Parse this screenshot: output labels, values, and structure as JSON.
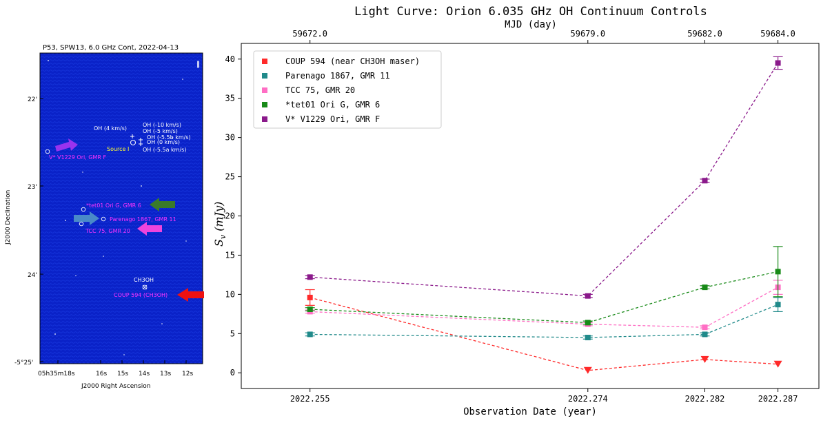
{
  "map": {
    "title": "P53, SPW13, 6.0 GHz Cont, 2022-04-13",
    "xlabel": "J2000 Right Ascension",
    "ylabel": "J2000 Declination",
    "ra_ticks": [
      "05h35m18s",
      "16s",
      "15s",
      "14s",
      "13s",
      "12s"
    ],
    "dec_ticks": [
      "22'",
      "23'",
      "24'",
      "-5°25'"
    ],
    "labels": {
      "oh4": "OH (4 km/s)",
      "oh_m10": "OH (-10 km/s)",
      "oh_m5": "OH (-5 km/s)",
      "oh_m55b": "OH (-5.5b km/s)",
      "oh_0": "OH (0 km/s)",
      "oh_m55a": "OH (-5.5a km/s)",
      "source_i": "Source I",
      "v1229": "V* V1229 Ori, GMR F",
      "tet01": "*tet01 Ori G, GMR 6",
      "parenago": "Parenago 1867, GMR 11",
      "tcc75": "TCC 75, GMR 20",
      "ch3oh": "CH3OH",
      "coup": "COUP 594 (CH3OH)"
    },
    "colors": {
      "background": "#0a22c8",
      "source_label": "#ff33ff",
      "maser_label": "#ffffff",
      "source_i": "#ffff33"
    }
  },
  "chart_data": {
    "type": "line",
    "title": "Light Curve: Orion 6.035 GHz OH Continuum Controls",
    "top_axis_label": "MJD (day)",
    "top_ticks": [
      "59672.0",
      "59679.0",
      "59682.0",
      "59684.0"
    ],
    "xlabel": "Observation Date (year)",
    "ylabel": "S_v (mJy)",
    "x": [
      2022.255,
      2022.274,
      2022.282,
      2022.287
    ],
    "x_tick_labels": [
      "2022.255",
      "2022.274",
      "2022.282",
      "2022.287"
    ],
    "ylim": [
      -2,
      42
    ],
    "yticks": [
      0,
      5,
      10,
      15,
      20,
      25,
      30,
      35,
      40
    ],
    "grid": false,
    "legend_position": "top-left",
    "series": [
      {
        "name": "COUP 594 (near CH3OH maser)",
        "color": "#ff2a2a",
        "values": [
          9.6,
          0.3,
          1.7,
          1.1
        ],
        "errors": [
          1.0,
          0,
          0,
          0
        ],
        "markers": [
          "square",
          "triangle-down",
          "triangle-down",
          "triangle-down"
        ]
      },
      {
        "name": "Parenago 1867, GMR 11",
        "color": "#208a8a",
        "values": [
          4.9,
          4.5,
          4.9,
          8.7
        ],
        "errors": [
          0.2,
          0.2,
          0.2,
          0.9
        ],
        "markers": [
          "square",
          "square",
          "square",
          "square"
        ]
      },
      {
        "name": "TCC 75, GMR 20",
        "color": "#ff6ec4",
        "values": [
          7.8,
          6.2,
          5.8,
          10.9
        ],
        "errors": [
          0.2,
          0.2,
          0.2,
          0.9
        ],
        "markers": [
          "square",
          "square",
          "square",
          "square"
        ]
      },
      {
        "name": "*tet01 Ori G, GMR 6",
        "color": "#188a18",
        "values": [
          8.1,
          6.4,
          10.9,
          12.9
        ],
        "errors": [
          0.2,
          0.2,
          0.2,
          3.2
        ],
        "markers": [
          "square",
          "square",
          "square",
          "square"
        ]
      },
      {
        "name": "V* V1229 Ori, GMR F",
        "color": "#8b1a8b",
        "values": [
          12.2,
          9.8,
          24.5,
          39.5
        ],
        "errors": [
          0.2,
          0.2,
          0.2,
          0.8
        ],
        "markers": [
          "square",
          "square",
          "square",
          "square"
        ]
      }
    ]
  }
}
